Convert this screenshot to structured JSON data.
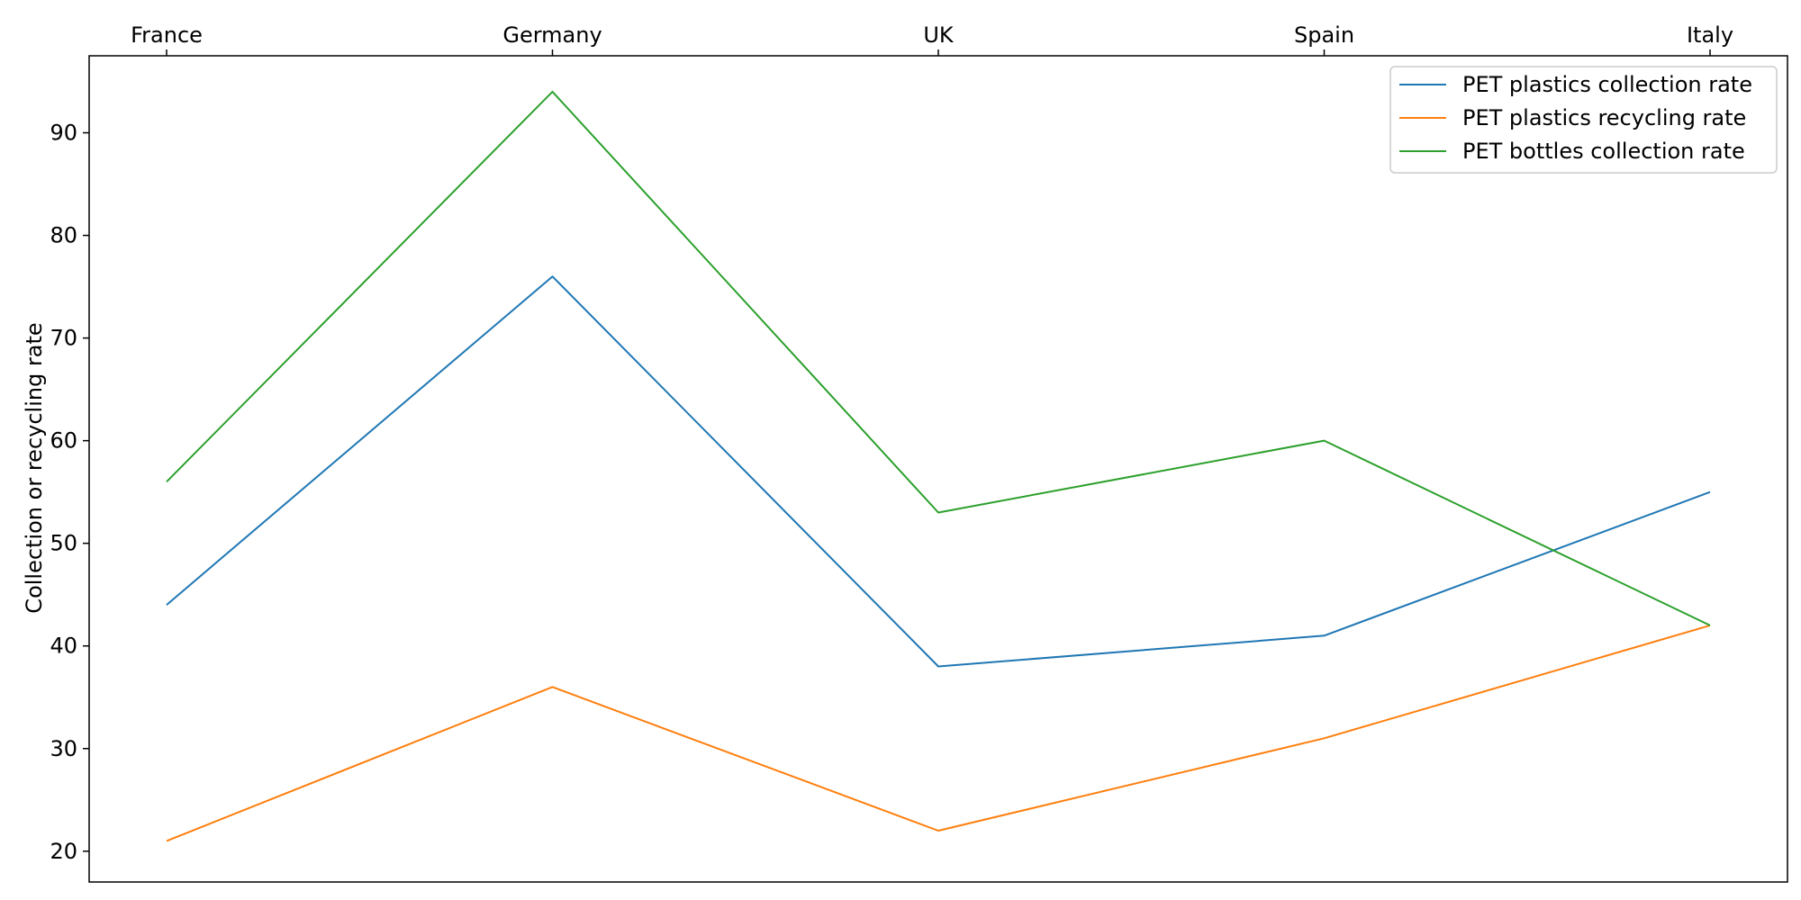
{
  "chart_data": {
    "type": "line",
    "title": "",
    "xlabel": "",
    "ylabel": "Collection or recycling rate",
    "x_axis_position": "top",
    "categories": [
      "France",
      "Germany",
      "UK",
      "Spain",
      "Italy"
    ],
    "ylim": [
      17,
      97.5
    ],
    "yticks": [
      20,
      30,
      40,
      50,
      60,
      70,
      80,
      90
    ],
    "grid": false,
    "legend_position": "top-right",
    "series": [
      {
        "name": "PET plastics collection rate",
        "color": "#1f77b4",
        "values": [
          44,
          76,
          38,
          41,
          55
        ]
      },
      {
        "name": "PET plastics recycling rate",
        "color": "#ff7f0e",
        "values": [
          21,
          36,
          22,
          31,
          42
        ]
      },
      {
        "name": "PET bottles collection rate",
        "color": "#2ca02c",
        "values": [
          56,
          94,
          53,
          60,
          42
        ]
      }
    ]
  }
}
